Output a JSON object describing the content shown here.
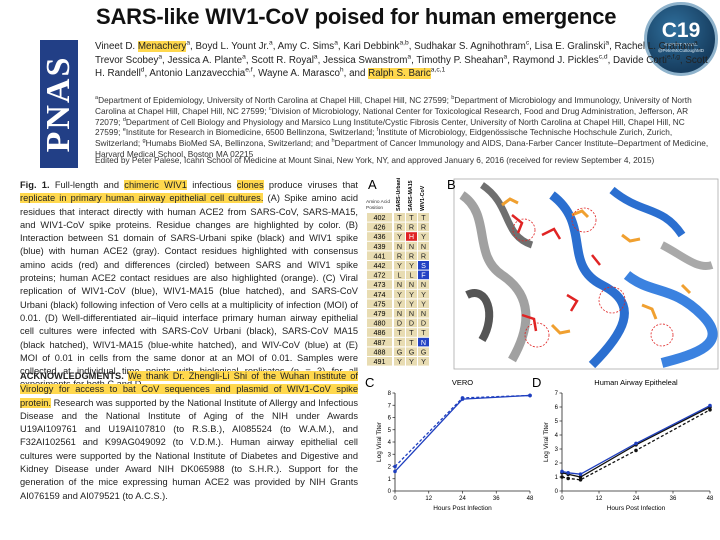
{
  "header": {
    "title": "SARS-like WIV1-CoV poised for human emergence",
    "logo": "PNAS",
    "badge": {
      "main": "C19",
      "line1": "EXPERT PANEL",
      "line2": "@PeterMcCulloughMD"
    }
  },
  "highlight_color": "#ffd84d",
  "authors": [
    {
      "text": "Vineet D. "
    },
    {
      "text": "Menachery",
      "highlight": true
    },
    {
      "sup": "a"
    },
    {
      "text": ", Boyd L. Yount Jr."
    },
    {
      "sup": "a"
    },
    {
      "text": ", Amy C. Sims"
    },
    {
      "sup": "a"
    },
    {
      "text": ", Kari Debbink"
    },
    {
      "sup": "a,b"
    },
    {
      "text": ", Sudhakar S. Agnihothram"
    },
    {
      "sup": "c"
    },
    {
      "text": ", Lisa E. Gralinski"
    },
    {
      "sup": "a"
    },
    {
      "text": ", Rachel L. Graham"
    },
    {
      "sup": "a"
    },
    {
      "text": ", Trevor Scobey"
    },
    {
      "sup": "a"
    },
    {
      "text": ", Jessica A. Plante"
    },
    {
      "sup": "a"
    },
    {
      "text": ", Scott R. Royal"
    },
    {
      "sup": "a"
    },
    {
      "text": ", Jessica Swanstrom"
    },
    {
      "sup": "a"
    },
    {
      "text": ", Timothy P. Sheahan"
    },
    {
      "sup": "a"
    },
    {
      "text": ", Raymond J. Pickles"
    },
    {
      "sup": "c,d"
    },
    {
      "text": ", Davide Corti"
    },
    {
      "sup": "e,f,g"
    },
    {
      "text": ", Scott H. Randell"
    },
    {
      "sup": "d"
    },
    {
      "text": ", Antonio Lanzavecchia"
    },
    {
      "sup": "e,f"
    },
    {
      "text": ", Wayne A. Marasco"
    },
    {
      "sup": "h"
    },
    {
      "text": ", and "
    },
    {
      "text": "Ralph S. Baric",
      "highlight": true
    },
    {
      "sup": "a,c,1"
    }
  ],
  "affiliations": [
    {
      "sup": "a"
    },
    {
      "text": "Department of Epidemiology, University of North Carolina at Chapel Hill, Chapel Hill, NC 27599; "
    },
    {
      "sup": "b"
    },
    {
      "text": "Department of Microbiology and Immunology, University of North Carolina at Chapel Hill, Chapel Hill, NC 27599; "
    },
    {
      "sup": "c"
    },
    {
      "text": "Division of Microbiology, National Center for Toxicological Research, Food and Drug Administration, Jefferson, AR 72079; "
    },
    {
      "sup": "d"
    },
    {
      "text": "Department of Cell Biology and Physiology and Marsico Lung Institute/Cystic Fibrosis Center, University of North Carolina at Chapel Hill, Chapel Hill, NC 27599; "
    },
    {
      "sup": "e"
    },
    {
      "text": "Institute for Research in Biomedicine, 6500 Bellinzona, Switzerland; "
    },
    {
      "sup": "f"
    },
    {
      "text": "Institute of Microbiology, Eidgenössische Technische Hochschule Zurich, Zurich, Switzerland; "
    },
    {
      "sup": "g"
    },
    {
      "text": "Humabs BioMed SA, Bellinzona, Switzerland; and "
    },
    {
      "sup": "h"
    },
    {
      "text": "Department of Cancer Immunology and AIDS, Dana-Farber Cancer Institute–Department of Medicine, Harvard Medical School, Boston MA 02215"
    }
  ],
  "edited_by": "Edited by Peter Palese, Icahn School of Medicine at Mount Sinai, New York, NY, and approved January 6, 2016 (received for review September 4, 2015)",
  "caption": [
    {
      "text": "Fig. 1.",
      "bold": true
    },
    {
      "text": "  Full-length and "
    },
    {
      "text": "chimeric WIV1",
      "highlight": true
    },
    {
      "text": " infectious "
    },
    {
      "text": "clones",
      "highlight": true
    },
    {
      "text": " produce viruses that "
    },
    {
      "text": "replicate in primary human airway epithelial cell cultures.",
      "highlight": true
    },
    {
      "text": " (A) Spike amino acid residues that interact directly with human ACE2 from SARS-CoV, SARS-MA15, and WIV1-CoV spike proteins. Residue changes are highlighted by color. (B) Interaction between S1 domain of SARS-Urbani spike (black) and WIV1 spike (blue) with human ACE2 (gray). Contact residues highlighted with consensus amino acids (red) and differences (circled) between SARS and WIV1 spike proteins; human ACE2 contact residues are also highlighted (orange). (C) Viral replication of WIV1-CoV (blue), WIV1-MA15 (blue hatched), and SARS-CoV Urbani (black) following infection of Vero cells at a multiplicity of infection (MOI) of 0.01. (D) Well-differentiated air–liquid interface primary human airway epithelial cell cultures were infected with SARS-CoV Urbani (black), SARS-CoV MA15 (black hatched), WIV1-MA15 (blue-white hatched), and WIV-CoV (blue) at (E) MOI of 0.01 in cells from the same donor at an MOI of 0.01. Samples were collected at individual time points with biological replicates (n = 3) for all experiments for both C and D."
    }
  ],
  "acknowledgments": [
    {
      "text": "ACKNOWLEDGMENTS.",
      "bold": true
    },
    {
      "text": " "
    },
    {
      "text": "We thank Dr. Zhengli-Li Shi of the Wuhan Institute of Virology for access to bat CoV sequences and plasmid of WIV1-CoV spike protein.",
      "highlight": true
    },
    {
      "text": " Research was supported by the National Institute of Allergy and Infectious Disease and the National Institute of Aging of the NIH under Awards U19AI109761 and U19AI107810 (to R.S.B.), AI085524 (to W.A.M.), and F32AI102561 and K99AG049092 (to V.D.M.). Human airway epithelial cell cultures were supported by the National Institute of Diabetes and Digestive and Kidney Disease under Award NIH DK065988 (to S.H.R.). Support for the generation of the mice expressing human ACE2 was provided by NIH Grants AI076159 and AI079521 (to A.C.S.)."
    }
  ],
  "figure": {
    "panel_a": {
      "label": "A",
      "position_label_lines": [
        "Amino Acid",
        "Position"
      ],
      "columns": [
        "SARS-Urbani",
        "SARS-MA15",
        "WIV1-CoV"
      ],
      "rows": [
        {
          "position": "402",
          "residues": [
            "T",
            "T",
            "T"
          ],
          "colors": [
            "#e8dcb2",
            "#e8dcb2",
            "#e8dcb2"
          ]
        },
        {
          "position": "426",
          "residues": [
            "R",
            "R",
            "R"
          ],
          "colors": [
            "#e8dcb2",
            "#e8dcb2",
            "#e8dcb2"
          ]
        },
        {
          "position": "436",
          "residues": [
            "Y",
            "H",
            "Y"
          ],
          "colors": [
            "#e8dcb2",
            "#e02424",
            "#e8dcb2"
          ]
        },
        {
          "position": "439",
          "residues": [
            "N",
            "N",
            "N"
          ],
          "colors": [
            "#e8dcb2",
            "#e8dcb2",
            "#e8dcb2"
          ]
        },
        {
          "position": "441",
          "residues": [
            "R",
            "R",
            "R"
          ],
          "colors": [
            "#e8dcb2",
            "#e8dcb2",
            "#e8dcb2"
          ]
        },
        {
          "position": "442",
          "residues": [
            "Y",
            "Y",
            "S"
          ],
          "colors": [
            "#e8dcb2",
            "#e8dcb2",
            "#2342c4"
          ]
        },
        {
          "position": "472",
          "residues": [
            "L",
            "L",
            "F"
          ],
          "colors": [
            "#e8dcb2",
            "#e8dcb2",
            "#2342c4"
          ]
        },
        {
          "position": "473",
          "residues": [
            "N",
            "N",
            "N"
          ],
          "colors": [
            "#e8dcb2",
            "#e8dcb2",
            "#e8dcb2"
          ]
        },
        {
          "position": "474",
          "residues": [
            "Y",
            "Y",
            "Y"
          ],
          "colors": [
            "#e8dcb2",
            "#e8dcb2",
            "#e8dcb2"
          ]
        },
        {
          "position": "475",
          "residues": [
            "Y",
            "Y",
            "Y"
          ],
          "colors": [
            "#e8dcb2",
            "#e8dcb2",
            "#e8dcb2"
          ]
        },
        {
          "position": "479",
          "residues": [
            "N",
            "N",
            "N"
          ],
          "colors": [
            "#e8dcb2",
            "#e8dcb2",
            "#e8dcb2"
          ]
        },
        {
          "position": "480",
          "residues": [
            "D",
            "D",
            "D"
          ],
          "colors": [
            "#e8dcb2",
            "#e8dcb2",
            "#e8dcb2"
          ]
        },
        {
          "position": "486",
          "residues": [
            "T",
            "T",
            "T"
          ],
          "colors": [
            "#e8dcb2",
            "#e8dcb2",
            "#e8dcb2"
          ]
        },
        {
          "position": "487",
          "residues": [
            "T",
            "T",
            "N"
          ],
          "colors": [
            "#e8dcb2",
            "#e8dcb2",
            "#2342c4"
          ]
        },
        {
          "position": "488",
          "residues": [
            "G",
            "G",
            "G"
          ],
          "colors": [
            "#e8dcb2",
            "#e8dcb2",
            "#e8dcb2"
          ]
        },
        {
          "position": "491",
          "residues": [
            "Y",
            "Y",
            "Y"
          ],
          "colors": [
            "#e8dcb2",
            "#e8dcb2",
            "#e8dcb2"
          ]
        }
      ]
    },
    "panel_b": {
      "label": "B"
    },
    "panel_c": {
      "label": "C",
      "type": "line",
      "title": "VERO",
      "ylabel": "Log Viral Titer",
      "xlabel": "Hours Post Infection",
      "x": [
        0,
        24,
        48
      ],
      "xlim": [
        0,
        48
      ],
      "xticks": [
        0,
        12,
        24,
        36,
        48
      ],
      "ylim": [
        0,
        8
      ],
      "yticks": [
        0,
        1,
        2,
        3,
        4,
        5,
        6,
        7,
        8
      ],
      "series": [
        {
          "color": "#1f3fbf",
          "dashed": false,
          "values": [
            1.6,
            7.5,
            7.8
          ]
        },
        {
          "color": "#1f3fbf",
          "dashed": true,
          "values": [
            2.0,
            7.6,
            7.8
          ]
        }
      ]
    },
    "panel_d": {
      "label": "D",
      "type": "line",
      "title": "Human Airway Epitheleal",
      "ylabel": "Log Viral Titer",
      "xlabel": "Hours Post Infection",
      "x": [
        0,
        2,
        6,
        24,
        48
      ],
      "xlim": [
        0,
        48
      ],
      "xticks": [
        0,
        12,
        24,
        36,
        48
      ],
      "ylim": [
        0,
        7
      ],
      "yticks": [
        0,
        1,
        2,
        3,
        4,
        5,
        6,
        7
      ],
      "series": [
        {
          "color": "#111111",
          "dashed": false,
          "values": [
            1.3,
            1.2,
            1.0,
            3.3,
            6.0
          ]
        },
        {
          "color": "#111111",
          "dashed": true,
          "values": [
            1.0,
            0.9,
            0.8,
            2.9,
            5.8
          ]
        },
        {
          "color": "#1f3fbf",
          "dashed": false,
          "values": [
            1.4,
            1.3,
            1.2,
            3.4,
            6.1
          ]
        }
      ]
    }
  }
}
